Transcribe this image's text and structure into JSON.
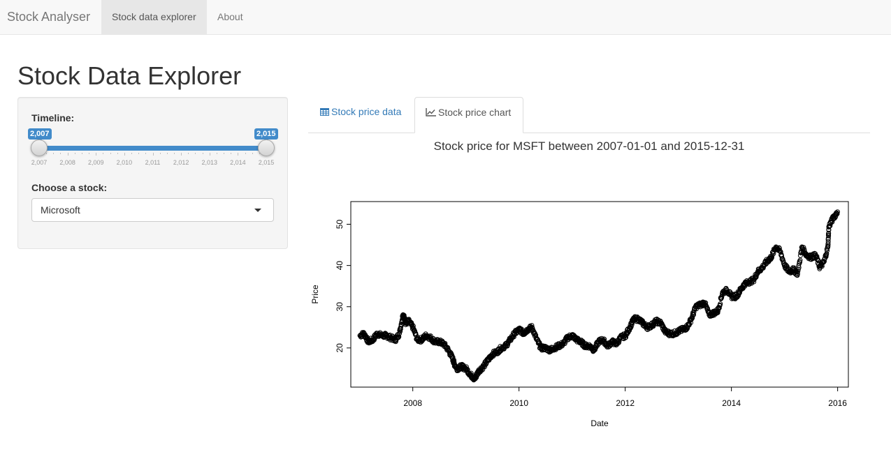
{
  "navbar": {
    "brand": "Stock Analyser",
    "items": [
      {
        "label": "Stock data explorer",
        "active": true
      },
      {
        "label": "About",
        "active": false
      }
    ]
  },
  "page": {
    "title": "Stock Data Explorer"
  },
  "sidebar": {
    "timeline": {
      "label": "Timeline:",
      "min": 2007,
      "max": 2015,
      "from": 2007,
      "to": 2015,
      "from_label": "2,007",
      "to_label": "2,015",
      "grid_labels": [
        "2,007",
        "2,008",
        "2,009",
        "2,010",
        "2,011",
        "2,012",
        "2,013",
        "2,014",
        "2,015"
      ]
    },
    "stock": {
      "label": "Choose a stock:",
      "selected": "Microsoft"
    }
  },
  "tabs": [
    {
      "label": "Stock price data",
      "icon": "table-icon",
      "active": false
    },
    {
      "label": "Stock price chart",
      "icon": "line-chart-icon",
      "active": true
    }
  ],
  "colors": {
    "accent": "#428bca",
    "link": "#337ab7"
  },
  "chart_data": {
    "type": "scatter",
    "title": "Stock price for MSFT between 2007-01-01 and 2015-12-31",
    "xlabel": "Date",
    "ylabel": "Price",
    "xlim": [
      "2006-11-01",
      "2016-03-15"
    ],
    "ylim": [
      10.5,
      55.5
    ],
    "x_ticks": [
      "2008",
      "2010",
      "2012",
      "2014",
      "2016"
    ],
    "y_ticks": [
      20,
      30,
      40,
      50
    ],
    "marker": "open-circle",
    "series": [
      {
        "x": [
          "2007-01-03",
          "2007-02-01",
          "2007-03-01",
          "2007-04-02",
          "2007-05-01",
          "2007-06-01",
          "2007-07-02",
          "2007-08-01",
          "2007-09-04",
          "2007-10-01",
          "2007-10-25",
          "2007-11-01",
          "2007-11-15",
          "2007-12-03",
          "2008-01-02",
          "2008-02-01",
          "2008-03-03",
          "2008-04-01",
          "2008-05-01",
          "2008-06-02",
          "2008-07-01",
          "2008-08-01",
          "2008-09-02",
          "2008-10-01",
          "2008-10-15",
          "2008-11-03",
          "2008-12-01",
          "2009-01-02",
          "2009-02-02",
          "2009-03-02",
          "2009-03-09",
          "2009-04-01",
          "2009-05-01",
          "2009-06-01",
          "2009-07-01",
          "2009-08-03",
          "2009-09-01",
          "2009-10-01",
          "2009-11-02",
          "2009-12-01",
          "2010-01-04",
          "2010-02-01",
          "2010-03-01",
          "2010-04-01",
          "2010-05-03",
          "2010-06-01",
          "2010-07-01",
          "2010-08-02",
          "2010-09-01",
          "2010-10-01",
          "2010-11-01",
          "2010-12-01",
          "2011-01-03",
          "2011-02-01",
          "2011-03-01",
          "2011-04-01",
          "2011-05-02",
          "2011-06-01",
          "2011-07-01",
          "2011-08-01",
          "2011-09-01",
          "2011-10-03",
          "2011-11-01",
          "2011-12-01",
          "2012-01-03",
          "2012-02-01",
          "2012-03-01",
          "2012-04-02",
          "2012-05-01",
          "2012-06-01",
          "2012-07-02",
          "2012-08-01",
          "2012-09-04",
          "2012-10-01",
          "2012-11-01",
          "2012-12-03",
          "2013-01-02",
          "2013-02-01",
          "2013-03-01",
          "2013-04-01",
          "2013-05-01",
          "2013-06-03",
          "2013-07-01",
          "2013-08-01",
          "2013-09-03",
          "2013-10-01",
          "2013-11-01",
          "2013-12-02",
          "2014-01-02",
          "2014-02-03",
          "2014-03-03",
          "2014-04-01",
          "2014-05-01",
          "2014-06-02",
          "2014-07-01",
          "2014-08-01",
          "2014-09-02",
          "2014-10-01",
          "2014-11-03",
          "2014-12-01",
          "2015-01-02",
          "2015-02-02",
          "2015-03-02",
          "2015-04-01",
          "2015-05-01",
          "2015-06-01",
          "2015-07-01",
          "2015-08-03",
          "2015-09-01",
          "2015-10-01",
          "2015-10-26",
          "2015-11-02",
          "2015-12-01",
          "2015-12-31"
        ],
        "y": [
          23.0,
          23.5,
          21.5,
          22.0,
          23.5,
          23.0,
          23.0,
          22.5,
          22.0,
          23.5,
          28.0,
          27.5,
          26.0,
          26.5,
          25.0,
          22.0,
          22.0,
          23.0,
          22.5,
          21.5,
          21.5,
          21.0,
          19.5,
          17.5,
          16.0,
          15.0,
          15.5,
          15.0,
          13.5,
          12.5,
          13.0,
          14.5,
          15.5,
          17.0,
          18.5,
          19.0,
          20.0,
          20.5,
          22.0,
          23.5,
          24.5,
          23.5,
          24.5,
          25.0,
          22.0,
          20.0,
          20.0,
          19.5,
          20.0,
          20.5,
          21.0,
          22.5,
          23.0,
          22.0,
          21.5,
          20.5,
          20.5,
          19.5,
          21.5,
          22.0,
          20.5,
          21.5,
          21.0,
          22.5,
          23.0,
          25.0,
          27.0,
          27.0,
          26.0,
          25.0,
          25.5,
          26.5,
          26.0,
          24.0,
          23.5,
          23.5,
          24.0,
          24.5,
          25.0,
          27.0,
          30.0,
          30.5,
          31.0,
          28.0,
          28.5,
          29.0,
          33.5,
          34.0,
          32.5,
          32.5,
          34.0,
          35.5,
          36.0,
          36.5,
          38.5,
          39.5,
          41.0,
          42.0,
          44.5,
          43.5,
          40.0,
          38.5,
          39.0,
          38.0,
          44.5,
          42.5,
          42.0,
          42.5,
          39.5,
          41.0,
          44.5,
          49.5,
          51.5,
          53.0
        ]
      }
    ]
  }
}
